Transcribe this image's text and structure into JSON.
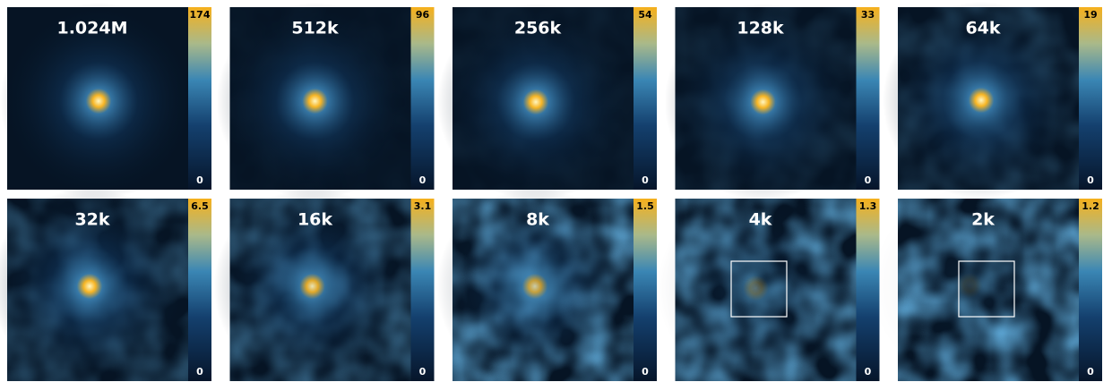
{
  "panels": [
    {
      "title": "1.024M",
      "cmax": 174,
      "cmin": 0
    },
    {
      "title": "512k",
      "cmax": 96,
      "cmin": 0
    },
    {
      "title": "256k",
      "cmax": 54,
      "cmin": 0
    },
    {
      "title": "128k",
      "cmax": 33,
      "cmin": 0
    },
    {
      "title": "64k",
      "cmax": 19,
      "cmin": 0
    },
    {
      "title": "32k",
      "cmax": 6.5,
      "cmin": 0
    },
    {
      "title": "16k",
      "cmax": 3.1,
      "cmin": 0
    },
    {
      "title": "8k",
      "cmax": 1.5,
      "cmin": 0
    },
    {
      "title": "4k",
      "cmax": 1.3,
      "cmin": 0
    },
    {
      "title": "2k",
      "cmax": 1.2,
      "cmin": 0
    }
  ]
}
